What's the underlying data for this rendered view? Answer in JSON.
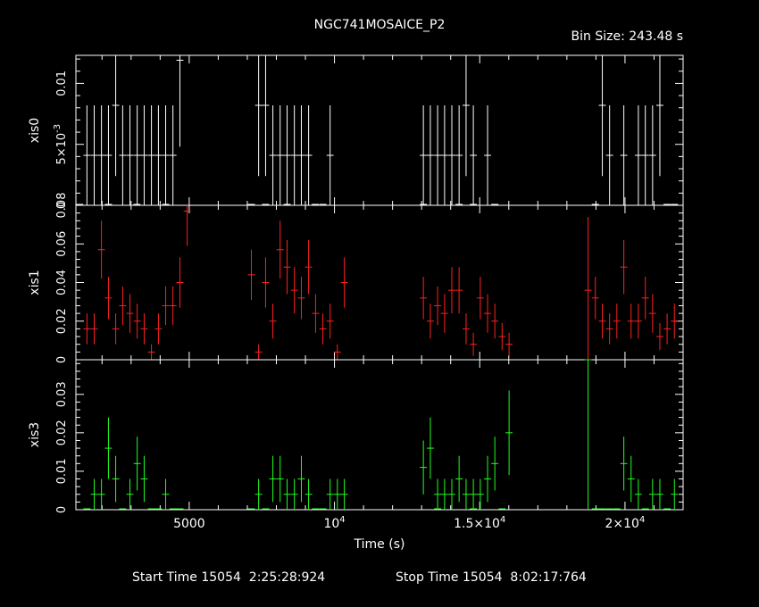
{
  "header": {
    "title": "NGC741MOSAICE_P2",
    "bin_size": "Bin Size: 243.48 s"
  },
  "footer": {
    "start_time": "Start Time 15054  2:25:28:924",
    "stop_time": "Stop Time 15054  8:02:17:764"
  },
  "colors": {
    "background": "#000000",
    "axes": "#ffffff",
    "xis0": "#ffffff",
    "xis1": "#ff2020",
    "xis3": "#20ff20"
  },
  "chart_data": {
    "type": "scatter",
    "xlabel": "Time (s)",
    "xlim": [
      1100,
      22000
    ],
    "x_ticks": [
      {
        "value": 5000,
        "label": "5000"
      },
      {
        "value": 10000,
        "label": "10^4"
      },
      {
        "value": 15000,
        "label": "1.5×10^4"
      },
      {
        "value": 20000,
        "label": "2×10^4"
      }
    ],
    "panels": [
      {
        "name": "xis0",
        "ylabel": "xis0",
        "ylim": [
          0,
          0.0123
        ],
        "y_ticks": [
          {
            "value": 0,
            "label": "0"
          },
          {
            "value": 0.005,
            "label": "5×10^-3"
          },
          {
            "value": 0.01,
            "label": "0.01"
          }
        ],
        "x": [
          1480,
          1730,
          1980,
          2220,
          2470,
          2710,
          2960,
          3210,
          3450,
          3700,
          3940,
          4190,
          4440,
          4680,
          7390,
          7630,
          7880,
          8130,
          8370,
          8620,
          8860,
          9110,
          9850,
          13060,
          13300,
          13550,
          13790,
          14040,
          14290,
          14530,
          14780,
          15270,
          19220,
          19470,
          19960,
          20460,
          20700,
          20950,
          21200
        ],
        "y": [
          0.0041,
          0.0041,
          0.0041,
          0.0041,
          0.0082,
          0.0041,
          0.0041,
          0.0041,
          0.0041,
          0.0041,
          0.0041,
          0.0041,
          0.0041,
          0.0119,
          0.0082,
          0.0082,
          0.0041,
          0.0041,
          0.0041,
          0.0041,
          0.0041,
          0.0041,
          0.0041,
          0.0041,
          0.0041,
          0.0041,
          0.0041,
          0.0041,
          0.0041,
          0.0082,
          0.0041,
          0.0041,
          0.0082,
          0.0041,
          0.0041,
          0.0041,
          0.0041,
          0.0041,
          0.0082
        ],
        "err": [
          0.0041,
          0.0041,
          0.0041,
          0.0041,
          0.0058,
          0.0041,
          0.0041,
          0.0041,
          0.0041,
          0.0041,
          0.0041,
          0.0041,
          0.0041,
          0.0071,
          0.0058,
          0.0058,
          0.0041,
          0.0041,
          0.0041,
          0.0041,
          0.0041,
          0.0041,
          0.0041,
          0.0041,
          0.0041,
          0.0041,
          0.0041,
          0.0041,
          0.0041,
          0.0058,
          0.0041,
          0.0041,
          0.0058,
          0.0041,
          0.0041,
          0.0041,
          0.0041,
          0.0041,
          0.0058
        ],
        "zero_x": [
          1230,
          2220,
          3200,
          4190,
          7140,
          7630,
          8370,
          9340,
          9600,
          13060,
          14290,
          14780,
          15520,
          18980,
          21450,
          21700
        ]
      },
      {
        "name": "xis1",
        "ylabel": "xis1",
        "ylim": [
          0,
          0.08
        ],
        "y_ticks": [
          {
            "value": 0,
            "label": "0"
          },
          {
            "value": 0.02,
            "label": "0.02"
          },
          {
            "value": 0.04,
            "label": "0.04"
          },
          {
            "value": 0.06,
            "label": "0.06"
          },
          {
            "value": 0.08,
            "label": "0.08"
          }
        ],
        "x": [
          1480,
          1730,
          1980,
          2220,
          2470,
          2710,
          2960,
          3210,
          3450,
          3700,
          3940,
          4190,
          4440,
          4680,
          4930,
          7140,
          7390,
          7630,
          7880,
          8130,
          8370,
          8620,
          8860,
          9110,
          9350,
          9600,
          9850,
          10100,
          10340,
          13060,
          13300,
          13550,
          13790,
          14040,
          14290,
          14530,
          14780,
          15020,
          15270,
          15520,
          15770,
          16010,
          18730,
          18980,
          19220,
          19470,
          19720,
          19960,
          20210,
          20460,
          20700,
          20950,
          21200,
          21450,
          21700
        ],
        "y": [
          0.016,
          0.016,
          0.057,
          0.032,
          0.016,
          0.028,
          0.024,
          0.02,
          0.016,
          0.004,
          0.016,
          0.028,
          0.028,
          0.04,
          0.077,
          0.044,
          0.004,
          0.04,
          0.02,
          0.057,
          0.048,
          0.036,
          0.032,
          0.048,
          0.024,
          0.016,
          0.02,
          0.004,
          0.04,
          0.032,
          0.02,
          0.028,
          0.024,
          0.036,
          0.036,
          0.016,
          0.008,
          0.032,
          0.024,
          0.02,
          0.012,
          0.008,
          0.036,
          0.032,
          0.02,
          0.016,
          0.02,
          0.048,
          0.02,
          0.02,
          0.032,
          0.024,
          0.012,
          0.016,
          0.02
        ],
        "err": [
          0.008,
          0.008,
          0.015,
          0.011,
          0.008,
          0.01,
          0.01,
          0.009,
          0.008,
          0.004,
          0.008,
          0.01,
          0.01,
          0.013,
          0.018,
          0.013,
          0.004,
          0.013,
          0.009,
          0.015,
          0.014,
          0.012,
          0.011,
          0.014,
          0.01,
          0.008,
          0.009,
          0.004,
          0.013,
          0.011,
          0.009,
          0.01,
          0.01,
          0.012,
          0.012,
          0.008,
          0.006,
          0.011,
          0.01,
          0.009,
          0.007,
          0.006,
          0.038,
          0.011,
          0.009,
          0.008,
          0.009,
          0.014,
          0.009,
          0.009,
          0.011,
          0.01,
          0.007,
          0.008,
          0.009
        ],
        "zero_x": []
      },
      {
        "name": "xis3",
        "ylabel": "xis3",
        "ylim": [
          0,
          0.039
        ],
        "y_ticks": [
          {
            "value": 0,
            "label": "0"
          },
          {
            "value": 0.01,
            "label": "0.01"
          },
          {
            "value": 0.02,
            "label": "0.02"
          },
          {
            "value": 0.03,
            "label": "0.03"
          }
        ],
        "x": [
          1730,
          1980,
          2220,
          2470,
          2960,
          3210,
          3450,
          4190,
          7390,
          7880,
          8130,
          8370,
          8620,
          8860,
          9110,
          9850,
          10100,
          10340,
          13060,
          13300,
          13550,
          13790,
          14040,
          14290,
          14530,
          14780,
          15020,
          15270,
          15520,
          16010,
          18730,
          19960,
          20210,
          20460,
          20950,
          21200,
          21700
        ],
        "y": [
          0.004,
          0.004,
          0.016,
          0.008,
          0.004,
          0.012,
          0.008,
          0.004,
          0.004,
          0.008,
          0.008,
          0.004,
          0.004,
          0.008,
          0.004,
          0.004,
          0.004,
          0.004,
          0.011,
          0.016,
          0.004,
          0.004,
          0.004,
          0.008,
          0.004,
          0.004,
          0.004,
          0.008,
          0.012,
          0.02,
          0.039,
          0.012,
          0.008,
          0.004,
          0.004,
          0.004,
          0.004
        ],
        "err": [
          0.004,
          0.004,
          0.008,
          0.006,
          0.004,
          0.007,
          0.006,
          0.004,
          0.004,
          0.006,
          0.006,
          0.004,
          0.004,
          0.006,
          0.004,
          0.004,
          0.004,
          0.004,
          0.007,
          0.008,
          0.004,
          0.004,
          0.004,
          0.006,
          0.004,
          0.004,
          0.004,
          0.006,
          0.007,
          0.011,
          0.039,
          0.007,
          0.006,
          0.004,
          0.004,
          0.004,
          0.004
        ],
        "zero_x": [
          1480,
          2710,
          3700,
          3940,
          4440,
          4680,
          7140,
          7630,
          9350,
          9600,
          13550,
          14780,
          15770,
          18980,
          19220,
          19470,
          19720,
          20700,
          21450
        ]
      }
    ]
  }
}
